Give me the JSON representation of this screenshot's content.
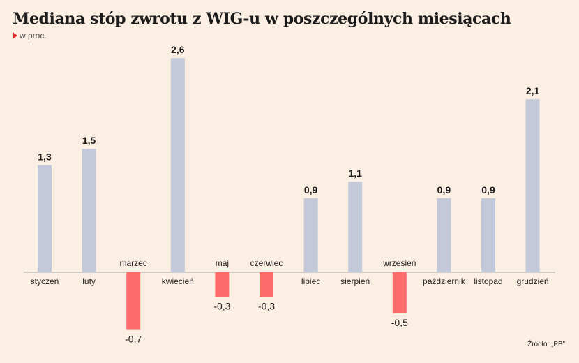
{
  "header": {
    "title": "Mediana stóp zwrotu z WIG-u w poszczególnych miesiącach",
    "subtitle": "w proc."
  },
  "footer": {
    "source": "Źródło: „PB”"
  },
  "colors": {
    "positive": "#c3c9d8",
    "negative": "#fd6b6b",
    "background": "#fbeee2",
    "marker": "#e0252b"
  },
  "chart_data": {
    "type": "bar",
    "categories": [
      "styczeń",
      "luty",
      "marzec",
      "kwiecień",
      "maj",
      "czerwiec",
      "lipiec",
      "sierpień",
      "wrzesień",
      "październik",
      "listopad",
      "grudzień"
    ],
    "values": [
      1.3,
      1.5,
      -0.7,
      2.6,
      -0.3,
      -0.3,
      0.9,
      1.1,
      -0.5,
      0.9,
      0.9,
      2.1
    ],
    "value_labels": [
      "1,3",
      "1,5",
      "-0,7",
      "2,6",
      "-0,3",
      "-0,3",
      "0,9",
      "1,1",
      "-0,5",
      "0,9",
      "0,9",
      "2,1"
    ],
    "title": "Mediana stóp zwrotu z WIG-u w poszczególnych miesiącach",
    "ylabel": "w proc.",
    "ylim": [
      -0.8,
      2.8
    ],
    "grid": false,
    "legend": "none"
  }
}
